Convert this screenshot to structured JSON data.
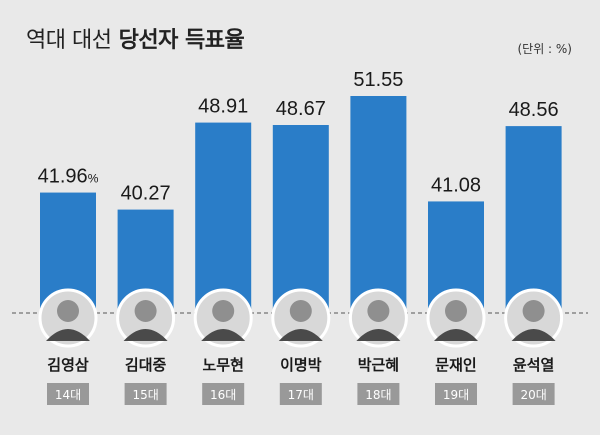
{
  "header": {
    "title_light": "역대 대선",
    "title_bold": "당선자 득표율",
    "unit": "(단위 : %)"
  },
  "colors": {
    "bar": "#2a7dc8",
    "term_badge": "#999999",
    "background": "#e9e9e9",
    "baseline": "#555555"
  },
  "chart_data": {
    "type": "bar",
    "title": "역대 대선 당선자 득표율",
    "unit": "(단위 : %)",
    "categories": [
      "김영삼",
      "김대중",
      "노무현",
      "이명박",
      "박근혜",
      "문재인",
      "윤석열"
    ],
    "terms": [
      "14대",
      "15대",
      "16대",
      "17대",
      "18대",
      "19대",
      "20대"
    ],
    "values": [
      41.96,
      40.27,
      48.91,
      48.67,
      51.55,
      41.08,
      48.56
    ],
    "value_labels": [
      "41.96",
      "40.27",
      "48.91",
      "48.67",
      "51.55",
      "41.08",
      "48.56"
    ],
    "first_value_suffix": "%",
    "icons": [
      "portrait-icon",
      "portrait-icon",
      "portrait-icon",
      "portrait-icon",
      "portrait-icon",
      "portrait-icon",
      "portrait-icon"
    ]
  }
}
